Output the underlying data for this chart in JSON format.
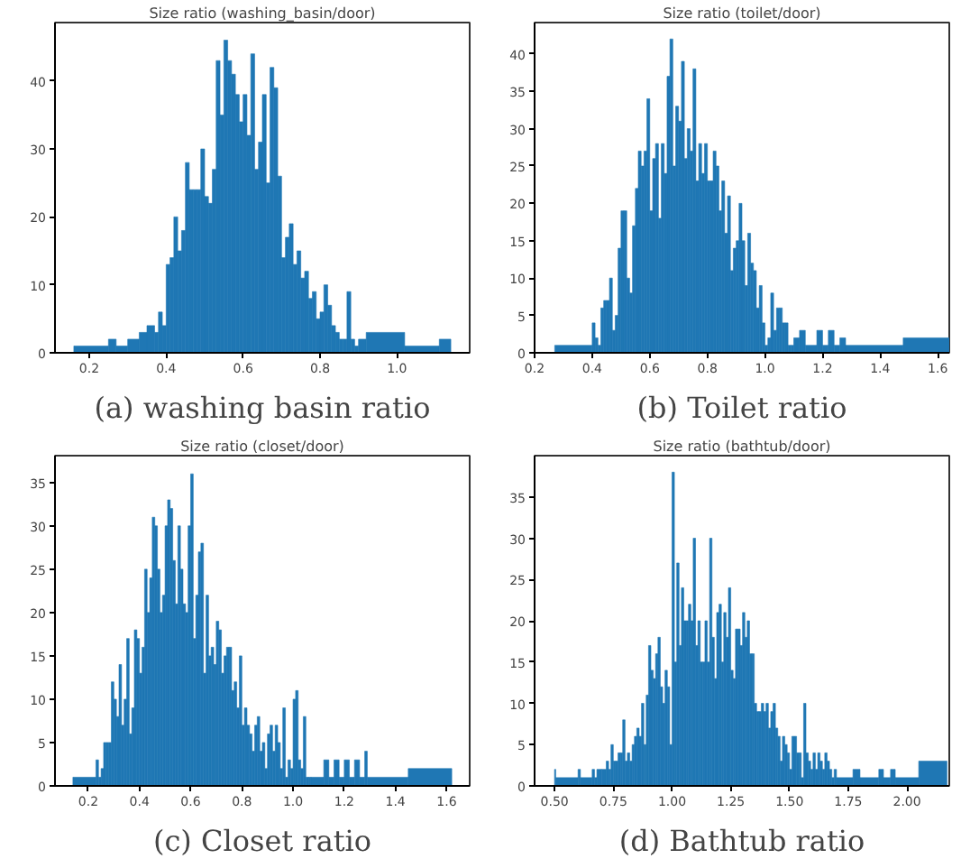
{
  "chart_data": [
    {
      "type": "histogram",
      "title": "Size ratio (washing_basin/door)",
      "annotations": [
        "(a) washing basin ratio"
      ],
      "color": "#1f77b4",
      "grid": false,
      "xlim": [
        0.111,
        1.189
      ],
      "ylim": [
        0,
        48.6
      ],
      "xticks": [
        0.2,
        0.4,
        0.6,
        0.8,
        {
          "value": 1.0,
          "label": "1.0"
        }
      ],
      "yticks": [
        0,
        10,
        20,
        30,
        40
      ],
      "bins": [
        0.16,
        0.25,
        0.27,
        0.3,
        0.33,
        0.35,
        0.37,
        0.38,
        0.39,
        0.4,
        0.41,
        0.42,
        0.43,
        0.44,
        0.45,
        0.46,
        0.47,
        0.48,
        0.49,
        0.5,
        0.51,
        0.52,
        0.53,
        0.54,
        0.55,
        0.56,
        0.57,
        0.58,
        0.59,
        0.6,
        0.61,
        0.62,
        0.63,
        0.64,
        0.65,
        0.66,
        0.67,
        0.68,
        0.69,
        0.7,
        0.71,
        0.72,
        0.73,
        0.74,
        0.75,
        0.76,
        0.77,
        0.78,
        0.79,
        0.8,
        0.81,
        0.82,
        0.83,
        0.84,
        0.85,
        0.86,
        0.87,
        0.88,
        0.89,
        0.9,
        0.92,
        1.02,
        1.11,
        1.14
      ],
      "values": [
        1,
        2,
        1,
        2,
        3,
        4,
        3,
        6,
        4,
        13,
        14,
        20,
        15,
        18,
        28,
        24,
        24,
        24,
        30,
        23,
        22,
        27,
        43,
        35,
        46,
        43,
        41,
        38,
        34,
        38,
        32,
        44,
        27,
        31,
        38,
        25,
        42,
        39,
        26,
        14,
        17,
        19,
        13,
        15,
        11,
        12,
        8,
        9,
        5,
        6,
        10,
        7,
        4,
        3,
        2,
        2,
        9,
        2,
        1,
        2,
        3,
        1,
        2
      ]
    },
    {
      "type": "histogram",
      "title": "Size ratio (toilet/door)",
      "annotations": [
        "(b) Toilet ratio"
      ],
      "color": "#1f77b4",
      "grid": false,
      "xlim": [
        0.2,
        1.64
      ],
      "ylim": [
        0,
        44.2
      ],
      "xticks": [
        0.2,
        0.4,
        0.6,
        0.8,
        {
          "value": 1.0,
          "label": "1.0"
        },
        1.2,
        1.4,
        1.6
      ],
      "yticks": [
        0,
        5,
        10,
        15,
        20,
        25,
        30,
        35,
        40
      ],
      "bins": [
        0.27,
        0.4,
        0.41,
        0.42,
        0.43,
        0.44,
        0.45,
        0.46,
        0.47,
        0.48,
        0.49,
        0.5,
        0.51,
        0.52,
        0.53,
        0.54,
        0.55,
        0.56,
        0.57,
        0.58,
        0.59,
        0.6,
        0.61,
        0.62,
        0.63,
        0.64,
        0.65,
        0.66,
        0.67,
        0.68,
        0.69,
        0.7,
        0.71,
        0.72,
        0.73,
        0.74,
        0.75,
        0.76,
        0.77,
        0.78,
        0.79,
        0.8,
        0.81,
        0.82,
        0.83,
        0.84,
        0.85,
        0.86,
        0.87,
        0.88,
        0.89,
        0.9,
        0.91,
        0.92,
        0.93,
        0.94,
        0.95,
        0.96,
        0.97,
        0.98,
        0.99,
        1.0,
        1.01,
        1.02,
        1.03,
        1.04,
        1.05,
        1.06,
        1.07,
        1.08,
        1.09,
        1.1,
        1.12,
        1.14,
        1.18,
        1.2,
        1.22,
        1.24,
        1.26,
        1.28,
        1.48,
        1.64
      ],
      "values": [
        1,
        4,
        2,
        1,
        6,
        7,
        7,
        10,
        3,
        5,
        14,
        19,
        19,
        10,
        8,
        17,
        22,
        27,
        25,
        27,
        34,
        19,
        26,
        28,
        18,
        28,
        24,
        37,
        42,
        25,
        33,
        31,
        39,
        26,
        30,
        27,
        38,
        23,
        28,
        24,
        28,
        23,
        23,
        27,
        25,
        19,
        23,
        16,
        21,
        11,
        14,
        15,
        20,
        15,
        9,
        16,
        12,
        11,
        6,
        9,
        4,
        1,
        2,
        8,
        3,
        6,
        6,
        4,
        4,
        1,
        1,
        2,
        3,
        1,
        3,
        1,
        3,
        1,
        2,
        1,
        2
      ]
    },
    {
      "type": "histogram",
      "title": "Size ratio (closet/door)",
      "annotations": [
        "(c) Closet ratio"
      ],
      "color": "#1f77b4",
      "grid": false,
      "xlim": [
        0.07,
        1.69
      ],
      "ylim": [
        0,
        38.1
      ],
      "xticks": [
        0.2,
        0.4,
        0.6,
        0.8,
        {
          "value": 1.0,
          "label": "1.0"
        },
        1.2,
        1.4,
        1.6
      ],
      "yticks": [
        0,
        5,
        10,
        15,
        20,
        25,
        30,
        35
      ],
      "bins": [
        0.14,
        0.23,
        0.24,
        0.25,
        0.26,
        0.27,
        0.28,
        0.29,
        0.3,
        0.31,
        0.32,
        0.33,
        0.34,
        0.35,
        0.36,
        0.37,
        0.38,
        0.39,
        0.4,
        0.41,
        0.42,
        0.43,
        0.44,
        0.45,
        0.46,
        0.47,
        0.48,
        0.49,
        0.5,
        0.51,
        0.52,
        0.53,
        0.54,
        0.55,
        0.56,
        0.57,
        0.58,
        0.59,
        0.6,
        0.61,
        0.62,
        0.63,
        0.64,
        0.65,
        0.66,
        0.67,
        0.68,
        0.69,
        0.7,
        0.71,
        0.72,
        0.73,
        0.74,
        0.75,
        0.76,
        0.77,
        0.78,
        0.79,
        0.8,
        0.81,
        0.82,
        0.83,
        0.84,
        0.85,
        0.86,
        0.87,
        0.88,
        0.89,
        0.9,
        0.91,
        0.92,
        0.93,
        0.94,
        0.95,
        0.96,
        0.97,
        0.98,
        0.99,
        1.0,
        1.01,
        1.02,
        1.03,
        1.04,
        1.05,
        1.06,
        1.07,
        1.12,
        1.14,
        1.16,
        1.18,
        1.2,
        1.22,
        1.24,
        1.26,
        1.28,
        1.29,
        1.45,
        1.62
      ],
      "values": [
        1,
        3,
        1,
        2,
        5,
        5,
        5,
        12,
        10,
        8,
        14,
        7,
        10,
        17,
        6,
        9,
        18,
        17,
        13,
        16,
        25,
        20,
        24,
        31,
        30,
        25,
        20,
        22,
        30,
        33,
        32,
        26,
        21,
        30,
        25,
        21,
        20,
        30,
        36,
        17,
        22,
        27,
        28,
        13,
        22,
        15,
        16,
        14,
        19,
        18,
        13,
        15,
        16,
        16,
        11,
        12,
        9,
        15,
        7,
        9,
        7,
        6,
        4,
        7,
        8,
        4,
        5,
        2,
        6,
        7,
        4,
        7,
        5,
        2,
        9,
        1,
        3,
        2,
        10,
        11,
        3,
        2,
        8,
        1,
        1,
        1,
        3,
        1,
        3,
        1,
        3,
        1,
        3,
        1,
        4,
        1,
        2
      ]
    },
    {
      "type": "histogram",
      "title": "Size ratio (bathtub/door)",
      "annotations": [
        "(d) Bathtub ratio"
      ],
      "color": "#1f77b4",
      "grid": false,
      "xlim": [
        0.415,
        2.18
      ],
      "ylim": [
        0,
        40
      ],
      "xticks": [
        {
          "value": 0.5,
          "label": "0.50"
        },
        0.75,
        {
          "value": 1.0,
          "label": "1.00"
        },
        1.25,
        {
          "value": 1.5,
          "label": "1.50"
        },
        1.75,
        {
          "value": 2.0,
          "label": "2.00"
        }
      ],
      "yticks": [
        0,
        5,
        10,
        15,
        20,
        25,
        30,
        35
      ],
      "bins": [
        0.5,
        0.505,
        0.6,
        0.61,
        0.66,
        0.67,
        0.68,
        0.7,
        0.72,
        0.73,
        0.74,
        0.75,
        0.76,
        0.77,
        0.78,
        0.79,
        0.8,
        0.81,
        0.82,
        0.83,
        0.84,
        0.85,
        0.86,
        0.87,
        0.88,
        0.89,
        0.9,
        0.91,
        0.92,
        0.93,
        0.94,
        0.95,
        0.96,
        0.97,
        0.98,
        0.99,
        1.0,
        1.01,
        1.02,
        1.03,
        1.04,
        1.05,
        1.06,
        1.07,
        1.08,
        1.09,
        1.1,
        1.11,
        1.12,
        1.13,
        1.14,
        1.15,
        1.16,
        1.17,
        1.18,
        1.19,
        1.2,
        1.21,
        1.22,
        1.23,
        1.24,
        1.25,
        1.26,
        1.27,
        1.28,
        1.29,
        1.3,
        1.31,
        1.32,
        1.33,
        1.34,
        1.35,
        1.36,
        1.37,
        1.38,
        1.39,
        1.4,
        1.41,
        1.42,
        1.43,
        1.44,
        1.45,
        1.46,
        1.47,
        1.48,
        1.49,
        1.5,
        1.51,
        1.52,
        1.53,
        1.54,
        1.55,
        1.56,
        1.57,
        1.58,
        1.59,
        1.6,
        1.61,
        1.62,
        1.63,
        1.64,
        1.65,
        1.66,
        1.67,
        1.68,
        1.69,
        1.7,
        1.77,
        1.8,
        1.88,
        1.9,
        1.93,
        1.95,
        2.05,
        2.17
      ],
      "values": [
        2,
        1,
        2,
        1,
        2,
        1,
        2,
        2,
        3,
        2,
        5,
        3,
        3,
        4,
        4,
        8,
        3,
        4,
        3,
        5,
        6,
        7,
        6,
        10,
        5,
        11,
        17,
        14,
        13,
        16,
        18,
        12,
        10,
        14,
        12,
        5,
        38,
        15,
        27,
        17,
        24,
        20,
        20,
        22,
        20,
        30,
        17,
        20,
        15,
        15,
        20,
        15,
        30,
        18,
        13,
        21,
        22,
        15,
        21,
        18,
        24,
        14,
        13,
        19,
        19,
        17,
        21,
        18,
        20,
        16,
        16,
        10,
        9,
        9,
        10,
        9,
        10,
        7,
        9,
        10,
        7,
        6,
        3,
        6,
        5,
        4,
        2,
        6,
        6,
        4,
        4,
        1,
        10,
        4,
        3,
        2,
        4,
        2,
        4,
        3,
        2,
        4,
        3,
        2,
        1,
        2,
        1,
        2,
        1,
        2,
        1,
        2,
        1,
        3
      ]
    }
  ]
}
